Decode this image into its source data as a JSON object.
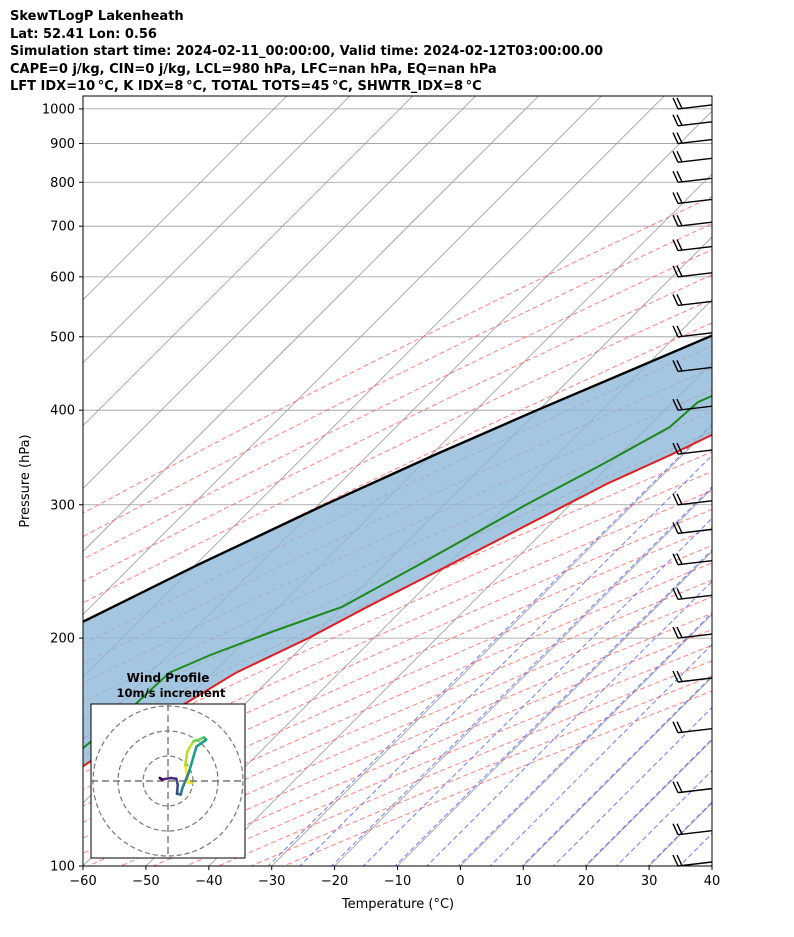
{
  "header": {
    "title": "SkewTLogP Lakenheath",
    "location": "Lat: 52.41   Lon: 0.56",
    "times": "Simulation start time: 2024-02-11_00:00:00, Valid time: 2024-02-12T03:00:00.00",
    "parcel_info": "CAPE=0 j/kg, CIN=0 j/kg, LCL=980 hPa, LFC=nan hPa, EQ=nan hPa",
    "indices": "LFT IDX=10 °C, K IDX=8 °C, TOTAL TOTS=45 °C, SHWTR_IDX=8 °C"
  },
  "chart_data": {
    "type": "skewt-logp",
    "xlabel": "Temperature (°C)",
    "ylabel": "Pressure (hPa)",
    "xlim": [
      -60,
      40
    ],
    "ylim": [
      1040,
      100
    ],
    "x_ticks": [
      -60,
      -50,
      -40,
      -30,
      -20,
      -10,
      0,
      10,
      20,
      30,
      40
    ],
    "x_tick_labels": [
      "−60",
      "−50",
      "−40",
      "−30",
      "−20",
      "−10",
      "0",
      "10",
      "20",
      "30",
      "40"
    ],
    "y_ticks": [
      1000,
      900,
      800,
      700,
      600,
      500,
      400,
      300,
      200,
      100
    ],
    "y_tick_labels": [
      "1000",
      "900",
      "800",
      "700",
      "600",
      "500",
      "400",
      "300",
      "200",
      "100"
    ],
    "grid": true,
    "colors": {
      "temperature": "#e41a1c",
      "dewpoint": "#1a8a1a",
      "parcel": "#000000",
      "cin_fill": "#8fb8d8",
      "dry_adiabats": "#ff5555",
      "moist_adiabats": "#3344ff",
      "mixing_ratio": "#9933cc",
      "isotherms": "#999999"
    },
    "temperature_profile": [
      [
        1000,
        4.6
      ],
      [
        990,
        6.4
      ],
      [
        970,
        6.9
      ],
      [
        950,
        6.0
      ],
      [
        925,
        4.8
      ],
      [
        900,
        3.9
      ],
      [
        850,
        2.6
      ],
      [
        800,
        1.1
      ],
      [
        750,
        -0.3
      ],
      [
        700,
        -2.1
      ],
      [
        650,
        -4.0
      ],
      [
        600,
        -7.2
      ],
      [
        550,
        -10.8
      ],
      [
        500,
        -14.6
      ],
      [
        450,
        -19.2
      ],
      [
        400,
        -24.4
      ],
      [
        350,
        -31.8
      ],
      [
        320,
        -37.4
      ],
      [
        300,
        -40.6
      ],
      [
        280,
        -44.0
      ],
      [
        260,
        -47.6
      ],
      [
        240,
        -51.6
      ],
      [
        220,
        -56.0
      ],
      [
        200,
        -60.4
      ],
      [
        180,
        -66.4
      ],
      [
        160,
        -70.4
      ],
      [
        140,
        -75.0
      ],
      [
        120,
        -79.0
      ],
      [
        110,
        -83.0
      ],
      [
        100,
        -86.8
      ]
    ],
    "dewpoint_profile": [
      [
        1000,
        3.6
      ],
      [
        980,
        1.8
      ],
      [
        950,
        -0.4
      ],
      [
        925,
        -0.5
      ],
      [
        900,
        -1.1
      ],
      [
        875,
        -2.6
      ],
      [
        850,
        -3.6
      ],
      [
        800,
        -8.1
      ],
      [
        750,
        -12.6
      ],
      [
        700,
        -16.4
      ],
      [
        650,
        -14.0
      ],
      [
        620,
        -12.0
      ],
      [
        580,
        -12.2
      ],
      [
        540,
        -15.3
      ],
      [
        500,
        -17.3
      ],
      [
        470,
        -21.3
      ],
      [
        440,
        -31.2
      ],
      [
        410,
        -36.0
      ],
      [
        380,
        -36.5
      ],
      [
        340,
        -41.2
      ],
      [
        300,
        -47.0
      ],
      [
        250,
        -54.5
      ],
      [
        220,
        -60.0
      ],
      [
        205,
        -66.7
      ],
      [
        190,
        -73.3
      ],
      [
        180,
        -77.0
      ],
      [
        160,
        -77.5
      ],
      [
        140,
        -79.0
      ],
      [
        120,
        -85.5
      ],
      [
        100,
        -93.0
      ]
    ],
    "parcel_profile": [
      [
        1000,
        4.0
      ],
      [
        980,
        1.8
      ],
      [
        950,
        -0.5
      ],
      [
        900,
        -4.3
      ],
      [
        850,
        -8.1
      ],
      [
        800,
        -12.3
      ],
      [
        750,
        -16.7
      ],
      [
        700,
        -21.6
      ],
      [
        650,
        -26.7
      ],
      [
        600,
        -32.1
      ],
      [
        550,
        -38.0
      ],
      [
        500,
        -44.6
      ],
      [
        450,
        -52.0
      ],
      [
        400,
        -60.3
      ],
      [
        350,
        -69.3
      ],
      [
        300,
        -79.0
      ],
      [
        250,
        -89.6
      ],
      [
        200,
        -101.5
      ],
      [
        150,
        -115.0
      ],
      [
        100,
        -131.0
      ]
    ],
    "wind_barb_levels": [
      1000,
      950,
      900,
      850,
      800,
      750,
      700,
      650,
      600,
      550,
      500,
      450,
      400,
      350,
      300,
      275,
      250,
      225,
      200,
      175,
      150,
      125,
      110,
      100
    ],
    "hodograph": {
      "title": "Wind Profile",
      "subtitle": "10m/s increment",
      "rings_ms": [
        10,
        20,
        30
      ],
      "points_uv": [
        [
          3.2,
          -0.3
        ],
        [
          2.7,
          -0.2
        ],
        [
          2.3,
          2.1
        ],
        [
          2.6,
          4.0
        ],
        [
          3.4,
          5.3
        ],
        [
          4.1,
          5.5
        ],
        [
          4.8,
          5.8
        ],
        [
          5.1,
          5.5
        ],
        [
          3.8,
          4.6
        ],
        [
          2.8,
          1.2
        ],
        [
          1.9,
          -1.0
        ],
        [
          1.7,
          -1.8
        ],
        [
          1.2,
          -1.7
        ],
        [
          1.3,
          -0.5
        ],
        [
          1.1,
          0.3
        ],
        [
          0.4,
          0.4
        ],
        [
          -0.8,
          0.2
        ],
        [
          -1.1,
          0.4
        ]
      ]
    }
  }
}
